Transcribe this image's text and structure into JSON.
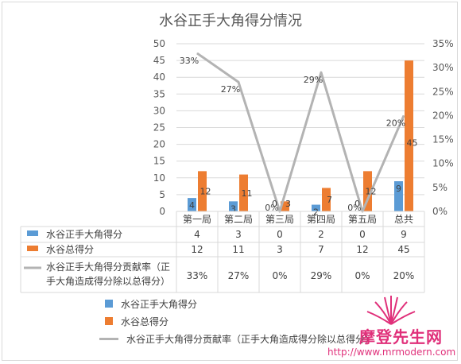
{
  "colors": {
    "series1": "#5b9bd5",
    "series2": "#ed7d31",
    "series3": "#b3b3b3",
    "gridline": "#d9d9d9",
    "axis_text": "#595959",
    "watermark": "#e0307a"
  },
  "chart_data": {
    "type": "bar",
    "title": "水谷正手大角得分情况",
    "categories": [
      "第一局",
      "第二局",
      "第三局",
      "第四局",
      "第五局",
      "总共"
    ],
    "y_left": {
      "min": 0,
      "max": 50,
      "step": 5,
      "ticks": [
        "0",
        "5",
        "10",
        "15",
        "20",
        "25",
        "30",
        "35",
        "40",
        "45",
        "50"
      ]
    },
    "y_right": {
      "min": 0,
      "max": 0.35,
      "step": 0.05,
      "ticks": [
        "0%",
        "5%",
        "10%",
        "15%",
        "20%",
        "25%",
        "30%",
        "35%"
      ]
    },
    "grid": true,
    "series": [
      {
        "name": "水谷正手大角得分",
        "type": "bar",
        "axis": "left",
        "values": [
          4,
          3,
          0,
          2,
          0,
          9
        ],
        "labels": [
          "4",
          "3",
          "0",
          "2",
          "0",
          "9"
        ]
      },
      {
        "name": "水谷总得分",
        "type": "bar",
        "axis": "left",
        "values": [
          12,
          11,
          3,
          7,
          12,
          45
        ],
        "labels": [
          "12",
          "11",
          "3",
          "7",
          "12",
          "45"
        ]
      },
      {
        "name": "水谷正手大角得分贡献率（正手大角造成得分除以总得分）",
        "table_name_lines": [
          "水谷正手大角得分贡献率（正",
          "手大角造成得分除以总得分）"
        ],
        "type": "line",
        "axis": "right",
        "values": [
          0.33,
          0.27,
          0,
          0.29,
          0,
          0.2
        ],
        "labels": [
          "33%",
          "27%",
          "0%",
          "29%",
          "0%",
          "20%"
        ]
      }
    ],
    "legend": {
      "placement": "bottom"
    }
  },
  "watermark": {
    "title": "摩登先生网",
    "url": "http://www.mrmodern.com"
  }
}
